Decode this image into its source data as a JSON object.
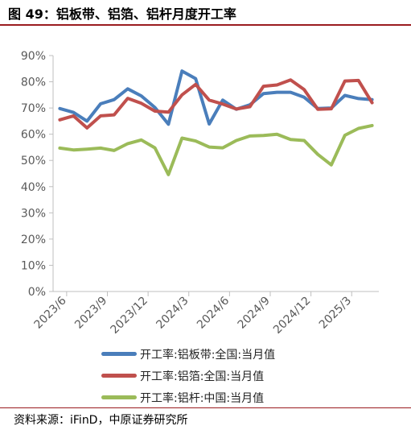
{
  "header": {
    "title": "图 49：铝板带、铝箔、铝杆月度开工率"
  },
  "footer": {
    "source": "资料来源：iFinD，中原证券研究所"
  },
  "chart_data": {
    "type": "line",
    "title": "",
    "xlabel": "",
    "ylabel": "",
    "ylim": [
      0,
      90
    ],
    "ytick_labels": [
      "0%",
      "10%",
      "20%",
      "30%",
      "40%",
      "50%",
      "60%",
      "70%",
      "80%",
      "90%"
    ],
    "x": [
      "2023/6",
      "2023/7",
      "2023/8",
      "2023/9",
      "2023/10",
      "2023/11",
      "2023/12",
      "2024/1",
      "2024/2",
      "2024/3",
      "2024/4",
      "2024/5",
      "2024/6",
      "2024/7",
      "2024/8",
      "2024/9",
      "2024/10",
      "2024/11",
      "2024/12",
      "2025/1",
      "2025/2",
      "2025/3",
      "2025/4",
      "2025/5"
    ],
    "xtick_labels": [
      "2023/6",
      "2023/9",
      "2023/12",
      "2024/3",
      "2024/6",
      "2024/9",
      "2024/12",
      "2025/3"
    ],
    "grid": false,
    "legend_position": "bottom",
    "series": [
      {
        "name": "开工率:铝板带:全国:当月值",
        "color": "#4a7ebb",
        "values": [
          69.8,
          68.3,
          65.0,
          71.6,
          73.2,
          77.3,
          74.6,
          70.2,
          63.8,
          84.1,
          81.2,
          63.9,
          73.0,
          69.5,
          71.2,
          75.5,
          76.0,
          76.0,
          74.1,
          69.8,
          70.0,
          74.8,
          73.6,
          73.2
        ]
      },
      {
        "name": "开工率:铝箔:全国:当月值",
        "color": "#c0504d",
        "values": [
          65.5,
          67.0,
          62.4,
          67.0,
          67.4,
          73.7,
          71.8,
          68.8,
          68.4,
          75.0,
          79.0,
          73.0,
          71.5,
          69.6,
          70.5,
          78.3,
          78.8,
          80.7,
          77.0,
          69.5,
          69.7,
          80.3,
          80.5,
          72.0
        ]
      },
      {
        "name": "开工率:铝杆:中国:当月值",
        "color": "#9bbb59",
        "values": [
          54.7,
          54.0,
          54.3,
          54.7,
          53.8,
          56.4,
          57.8,
          54.8,
          44.6,
          58.5,
          57.4,
          55.1,
          54.8,
          57.6,
          59.3,
          59.5,
          60.0,
          58.0,
          57.6,
          52.3,
          48.3,
          59.6,
          62.2,
          63.3
        ]
      }
    ]
  }
}
